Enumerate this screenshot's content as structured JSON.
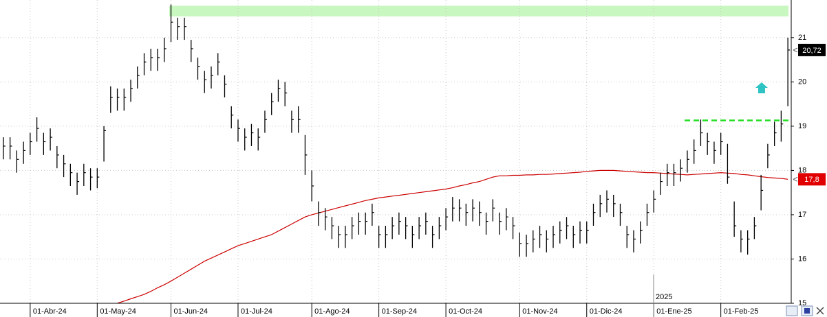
{
  "chart_data": {
    "type": "ohlc",
    "categories": [
      null,
      null,
      null,
      null,
      "01-Abr-24",
      null,
      null,
      null,
      null,
      null,
      null,
      null,
      null,
      null,
      "01-May-24",
      null,
      null,
      null,
      null,
      null,
      null,
      null,
      null,
      null,
      null,
      "01-Jun-24",
      null,
      null,
      null,
      null,
      null,
      null,
      null,
      null,
      null,
      "01-Jul-24",
      null,
      null,
      null,
      null,
      null,
      null,
      null,
      null,
      null,
      null,
      "01-Ago-24",
      null,
      null,
      null,
      null,
      null,
      null,
      null,
      null,
      null,
      "01-Sep-24",
      null,
      null,
      null,
      null,
      null,
      null,
      null,
      null,
      null,
      "01-Oct-24",
      null,
      null,
      null,
      null,
      null,
      null,
      null,
      null,
      null,
      null,
      "01-Nov-24",
      null,
      null,
      null,
      null,
      null,
      null,
      null,
      null,
      null,
      "01-Dic-24",
      null,
      null,
      null,
      null,
      null,
      null,
      null,
      null,
      null,
      "01-Ene-25",
      null,
      null,
      null,
      null,
      null,
      null,
      null,
      null,
      null,
      "01-Feb-25",
      null,
      null,
      null,
      null,
      null,
      null,
      null,
      null,
      null,
      null
    ],
    "ohlc": {
      "color": "#000000",
      "high": [
        18.75,
        18.75,
        18.45,
        18.65,
        18.85,
        19.2,
        18.85,
        18.95,
        18.55,
        18.35,
        18.15,
        17.95,
        18.15,
        18.05,
        18.05,
        19.0,
        19.9,
        19.85,
        19.85,
        20.05,
        20.35,
        20.65,
        20.75,
        20.75,
        21.0,
        21.75,
        21.45,
        21.45,
        20.95,
        20.55,
        20.25,
        20.35,
        20.65,
        20.15,
        19.45,
        19.15,
        18.95,
        19.05,
        18.95,
        19.35,
        19.75,
        20.05,
        20.0,
        19.35,
        19.45,
        18.8,
        18.0,
        17.3,
        17.15,
        16.95,
        16.75,
        16.75,
        16.95,
        17.05,
        17.05,
        17.25,
        16.75,
        16.75,
        16.95,
        17.05,
        16.95,
        16.75,
        16.95,
        17.05,
        16.75,
        16.95,
        17.15,
        17.4,
        17.35,
        17.25,
        17.35,
        17.3,
        17.05,
        17.35,
        17.05,
        17.15,
        16.95,
        16.6,
        16.55,
        16.65,
        16.75,
        16.65,
        16.75,
        16.85,
        16.95,
        16.75,
        16.85,
        16.85,
        17.25,
        17.45,
        17.55,
        17.45,
        17.25,
        16.75,
        16.65,
        16.85,
        17.25,
        17.55,
        17.95,
        18.15,
        18.15,
        18.25,
        18.45,
        18.7,
        19.15,
        18.85,
        18.65,
        18.85,
        18.6,
        17.3,
        16.65,
        16.65,
        16.95,
        17.9,
        18.6,
        19.1,
        19.35,
        21.0
      ],
      "low": [
        18.25,
        18.25,
        17.95,
        18.15,
        18.35,
        18.65,
        18.35,
        18.45,
        18.05,
        17.85,
        17.65,
        17.45,
        17.65,
        17.55,
        17.6,
        18.2,
        19.3,
        19.35,
        19.35,
        19.55,
        19.85,
        20.15,
        20.25,
        20.25,
        20.45,
        20.9,
        20.95,
        20.95,
        20.45,
        20.05,
        19.75,
        19.85,
        20.15,
        19.65,
        18.95,
        18.65,
        18.45,
        18.55,
        18.45,
        18.85,
        19.25,
        19.55,
        19.45,
        18.85,
        18.85,
        17.9,
        17.3,
        16.75,
        16.65,
        16.45,
        16.25,
        16.25,
        16.45,
        16.55,
        16.55,
        16.75,
        16.25,
        16.25,
        16.45,
        16.55,
        16.45,
        16.25,
        16.45,
        16.55,
        16.25,
        16.45,
        16.65,
        16.85,
        16.85,
        16.75,
        16.85,
        16.75,
        16.55,
        16.85,
        16.55,
        16.65,
        16.45,
        16.05,
        16.05,
        16.15,
        16.25,
        16.15,
        16.25,
        16.35,
        16.45,
        16.25,
        16.35,
        16.35,
        16.75,
        16.95,
        17.05,
        16.95,
        16.75,
        16.25,
        16.15,
        16.35,
        16.75,
        17.05,
        17.45,
        17.65,
        17.65,
        17.75,
        17.95,
        18.15,
        18.55,
        18.35,
        18.15,
        18.35,
        17.7,
        16.5,
        16.15,
        16.1,
        16.45,
        17.1,
        18.05,
        18.55,
        18.65,
        19.45
      ],
      "close": [
        18.55,
        18.55,
        18.25,
        18.45,
        18.65,
        18.95,
        18.65,
        18.75,
        18.35,
        18.15,
        17.95,
        17.75,
        17.95,
        17.85,
        17.85,
        18.9,
        19.65,
        19.65,
        19.65,
        19.85,
        20.15,
        20.45,
        20.55,
        20.55,
        20.75,
        21.35,
        21.25,
        21.25,
        20.75,
        20.35,
        20.05,
        20.15,
        20.45,
        19.95,
        19.25,
        18.95,
        18.75,
        18.85,
        18.75,
        19.15,
        19.55,
        19.85,
        19.75,
        19.15,
        19.15,
        18.35,
        17.65,
        17.05,
        16.95,
        16.75,
        16.55,
        16.55,
        16.75,
        16.85,
        16.85,
        17.05,
        16.55,
        16.55,
        16.75,
        16.85,
        16.75,
        16.55,
        16.75,
        16.85,
        16.55,
        16.75,
        16.95,
        17.15,
        17.15,
        17.05,
        17.15,
        17.05,
        16.85,
        17.15,
        16.85,
        16.95,
        16.75,
        16.35,
        16.35,
        16.45,
        16.55,
        16.45,
        16.55,
        16.65,
        16.75,
        16.55,
        16.65,
        16.65,
        17.05,
        17.25,
        17.35,
        17.25,
        17.05,
        16.55,
        16.45,
        16.65,
        17.05,
        17.35,
        17.75,
        17.95,
        17.95,
        18.05,
        18.25,
        18.45,
        18.85,
        18.65,
        18.45,
        18.65,
        17.85,
        16.75,
        16.45,
        16.45,
        16.75,
        17.55,
        18.35,
        18.85,
        19.05,
        20.72
      ]
    },
    "moving_average": {
      "color": "#cc0000",
      "values": [
        null,
        null,
        null,
        null,
        null,
        null,
        null,
        null,
        null,
        null,
        null,
        null,
        null,
        null,
        null,
        null,
        null,
        15.0,
        15.05,
        15.1,
        15.15,
        15.2,
        15.27,
        15.35,
        15.42,
        15.5,
        15.59,
        15.68,
        15.77,
        15.86,
        15.95,
        16.02,
        16.09,
        16.16,
        16.23,
        16.3,
        16.35,
        16.4,
        16.45,
        16.5,
        16.55,
        16.63,
        16.71,
        16.79,
        16.87,
        16.95,
        17.0,
        17.04,
        17.08,
        17.12,
        17.16,
        17.2,
        17.24,
        17.28,
        17.32,
        17.35,
        17.38,
        17.4,
        17.42,
        17.44,
        17.46,
        17.48,
        17.5,
        17.52,
        17.54,
        17.56,
        17.58,
        17.61,
        17.65,
        17.68,
        17.72,
        17.75,
        17.8,
        17.85,
        17.88,
        17.88,
        17.89,
        17.89,
        17.9,
        17.9,
        17.91,
        17.91,
        17.92,
        17.93,
        17.94,
        17.95,
        17.96,
        17.98,
        17.99,
        18.0,
        18.0,
        18.0,
        17.99,
        17.98,
        17.97,
        17.96,
        17.95,
        17.95,
        17.94,
        17.93,
        17.92,
        17.91,
        17.9,
        17.91,
        17.92,
        17.93,
        17.94,
        17.95,
        17.94,
        17.93,
        17.91,
        17.9,
        17.88,
        17.86,
        17.84,
        17.83,
        17.82,
        17.8
      ]
    },
    "zone": {
      "from": 21.48,
      "to": 21.72,
      "color": "#c8f7c0"
    },
    "resistance_line": {
      "value": 19.13,
      "color": "#22dd22"
    },
    "year_label": "2025",
    "price_labels": [
      {
        "value": 20.72,
        "label": "20,72",
        "color": "#000000"
      },
      {
        "value": 17.8,
        "label": "17,8",
        "color": "#e00000"
      }
    ],
    "ylim": [
      15,
      21.85
    ],
    "yticks": [
      15,
      16,
      17,
      18,
      19,
      20,
      21
    ],
    "grid": true
  }
}
